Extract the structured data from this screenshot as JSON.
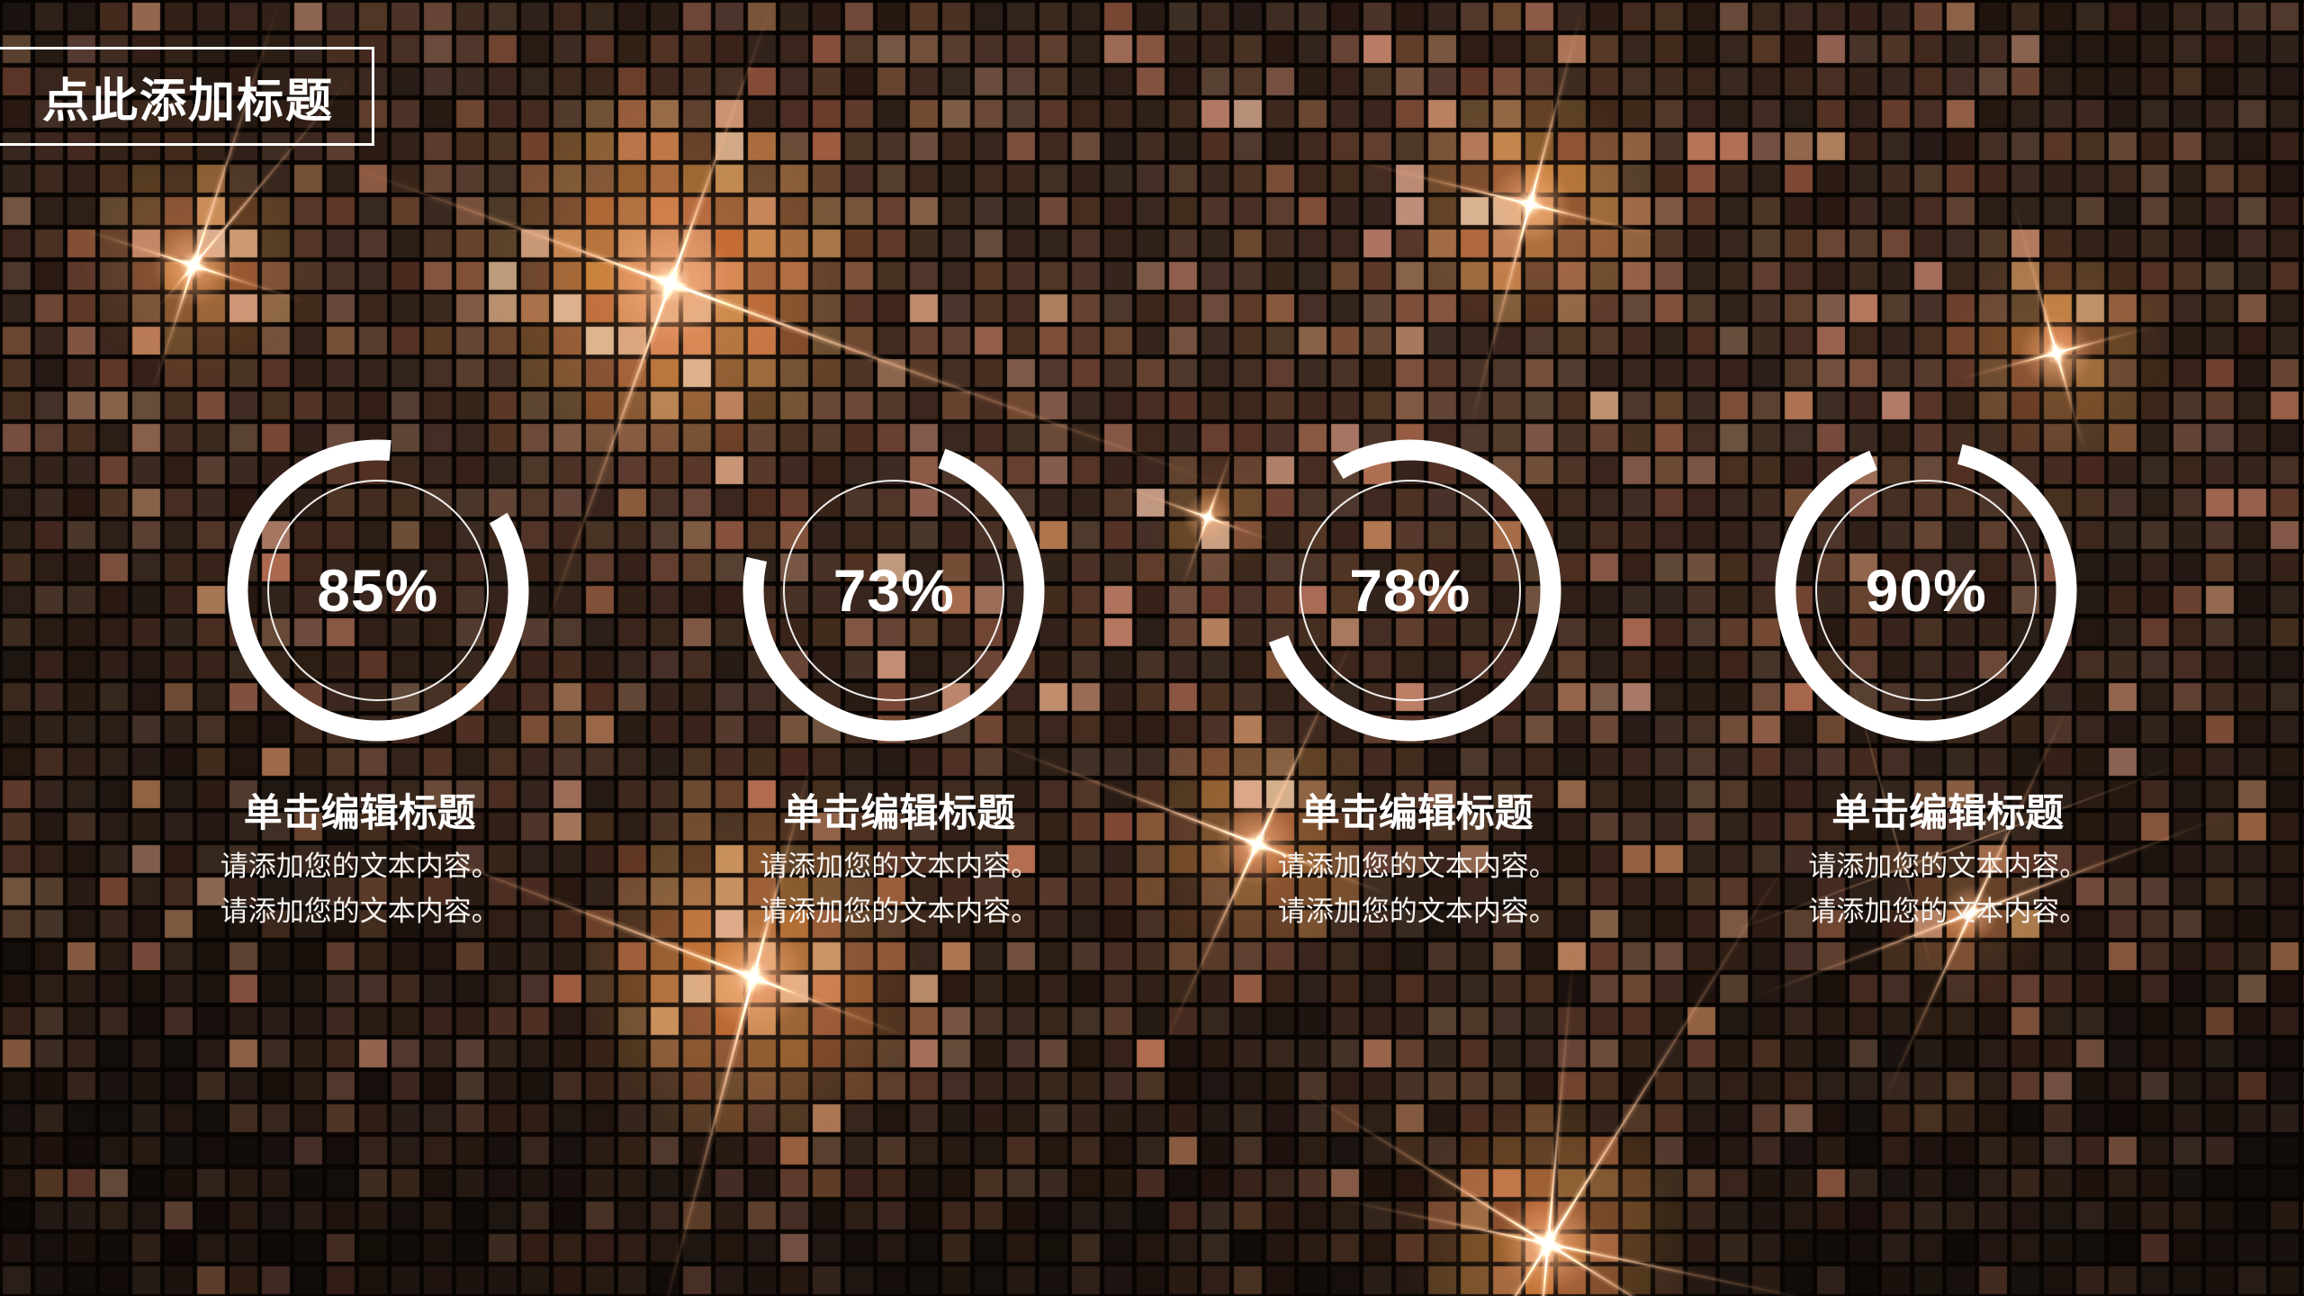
{
  "slide": {
    "title": "点此添加标题",
    "items": [
      {
        "percent": "85%",
        "value": 85,
        "heading": "单击编辑标题",
        "lines": [
          "请添加您的文本内容。",
          "请添加您的文本内容。"
        ]
      },
      {
        "percent": "73%",
        "value": 73,
        "heading": "单击编辑标题",
        "lines": [
          "请添加您的文本内容。",
          "请添加您的文本内容。"
        ]
      },
      {
        "percent": "78%",
        "value": 78,
        "heading": "单击编辑标题",
        "lines": [
          "请添加您的文本内容。",
          "请添加您的文本内容。"
        ]
      },
      {
        "percent": "90%",
        "value": 90,
        "heading": "单击编辑标题",
        "lines": [
          "请添加您的文本内容。",
          "请添加您的文本内容。"
        ]
      }
    ],
    "chart_data": {
      "type": "bar",
      "categories": [
        "单击编辑标题",
        "单击编辑标题",
        "单击编辑标题",
        "单击编辑标题"
      ],
      "values": [
        85,
        73,
        78,
        90
      ],
      "title": "点此添加标题",
      "unit": "%"
    },
    "colors": {
      "background": "#080503",
      "tile_dark": "#1c120b",
      "tile_light": "#b98a63",
      "sparkle": "#f2b285",
      "ring": "#ffffff",
      "text": "#ffffff"
    }
  }
}
